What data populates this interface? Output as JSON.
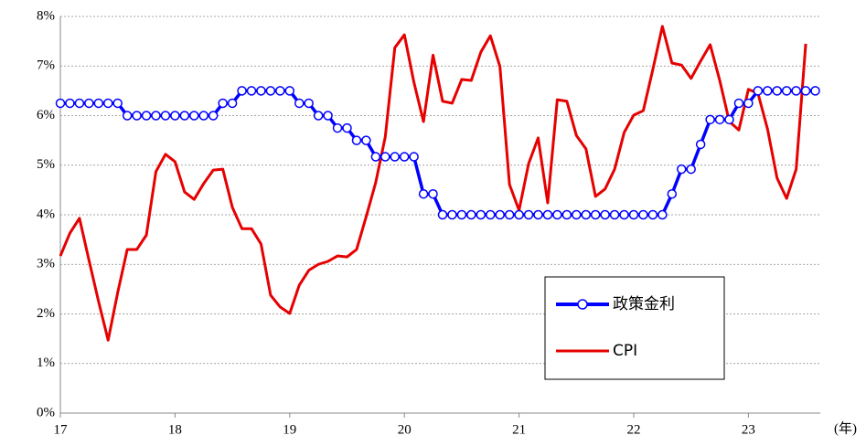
{
  "chart_data": {
    "type": "line",
    "categories": [
      "17",
      null,
      null,
      null,
      null,
      null,
      null,
      null,
      null,
      null,
      null,
      null,
      "18",
      null,
      null,
      null,
      null,
      null,
      null,
      null,
      null,
      null,
      null,
      null,
      "19",
      null,
      null,
      null,
      null,
      null,
      null,
      null,
      null,
      null,
      null,
      null,
      "20",
      null,
      null,
      null,
      null,
      null,
      null,
      null,
      null,
      null,
      null,
      null,
      "21",
      null,
      null,
      null,
      null,
      null,
      null,
      null,
      null,
      null,
      null,
      null,
      "22",
      null,
      null,
      null,
      null,
      null,
      null,
      null,
      null,
      null,
      null,
      null,
      "23",
      null,
      null,
      null,
      null,
      null,
      null,
      null
    ],
    "series": [
      {
        "name": "政策金利",
        "color": "#0000ff",
        "marker": true,
        "values": [
          6.25,
          6.25,
          6.25,
          6.25,
          6.25,
          6.25,
          6.25,
          6.0,
          6.0,
          6.0,
          6.0,
          6.0,
          6.0,
          6.0,
          6.0,
          6.0,
          6.0,
          6.25,
          6.25,
          6.5,
          6.5,
          6.5,
          6.5,
          6.5,
          6.5,
          6.25,
          6.25,
          6.0,
          6.0,
          5.75,
          5.75,
          5.5,
          5.5,
          5.17,
          5.17,
          5.17,
          5.17,
          5.17,
          4.42,
          4.42,
          4.0,
          4.0,
          4.0,
          4.0,
          4.0,
          4.0,
          4.0,
          4.0,
          4.0,
          4.0,
          4.0,
          4.0,
          4.0,
          4.0,
          4.0,
          4.0,
          4.0,
          4.0,
          4.0,
          4.0,
          4.0,
          4.0,
          4.0,
          4.0,
          4.42,
          4.92,
          4.92,
          5.42,
          5.92,
          5.92,
          5.92,
          6.25,
          6.25,
          6.5,
          6.5,
          6.5,
          6.5,
          6.5,
          6.5,
          6.5
        ]
      },
      {
        "name": "CPI",
        "color": "#e60000",
        "marker": false,
        "values": [
          3.17,
          3.63,
          3.93,
          3.08,
          2.25,
          1.47,
          2.43,
          3.3,
          3.3,
          3.59,
          4.87,
          5.22,
          5.07,
          4.46,
          4.31,
          4.63,
          4.9,
          4.92,
          4.15,
          3.72,
          3.72,
          3.41,
          2.38,
          2.14,
          2.01,
          2.58,
          2.88,
          3.0,
          3.06,
          3.17,
          3.15,
          3.3,
          3.96,
          4.65,
          5.57,
          7.37,
          7.63,
          6.67,
          5.88,
          7.22,
          6.29,
          6.25,
          6.73,
          6.71,
          7.28,
          7.61,
          6.99,
          4.61,
          4.09,
          5.03,
          5.55,
          4.24,
          6.32,
          6.29,
          5.6,
          5.33,
          4.37,
          4.52,
          4.92,
          5.66,
          6.01,
          6.1,
          6.93,
          7.8,
          7.06,
          7.02,
          6.75,
          7.1,
          7.43,
          6.71,
          5.88,
          5.71,
          6.53,
          6.45,
          5.73,
          4.74,
          4.33,
          4.92,
          7.45,
          null
        ]
      }
    ],
    "ylim": [
      0,
      8
    ],
    "yticks": [
      {
        "value": 0,
        "label": "0%"
      },
      {
        "value": 1,
        "label": "1%"
      },
      {
        "value": 2,
        "label": "2%"
      },
      {
        "value": 3,
        "label": "3%"
      },
      {
        "value": 4,
        "label": "4%"
      },
      {
        "value": 5,
        "label": "5%"
      },
      {
        "value": 6,
        "label": "6%"
      },
      {
        "value": 7,
        "label": "7%"
      },
      {
        "value": 8,
        "label": "8%"
      }
    ],
    "x_unit_label": "(年)",
    "grid": true
  }
}
